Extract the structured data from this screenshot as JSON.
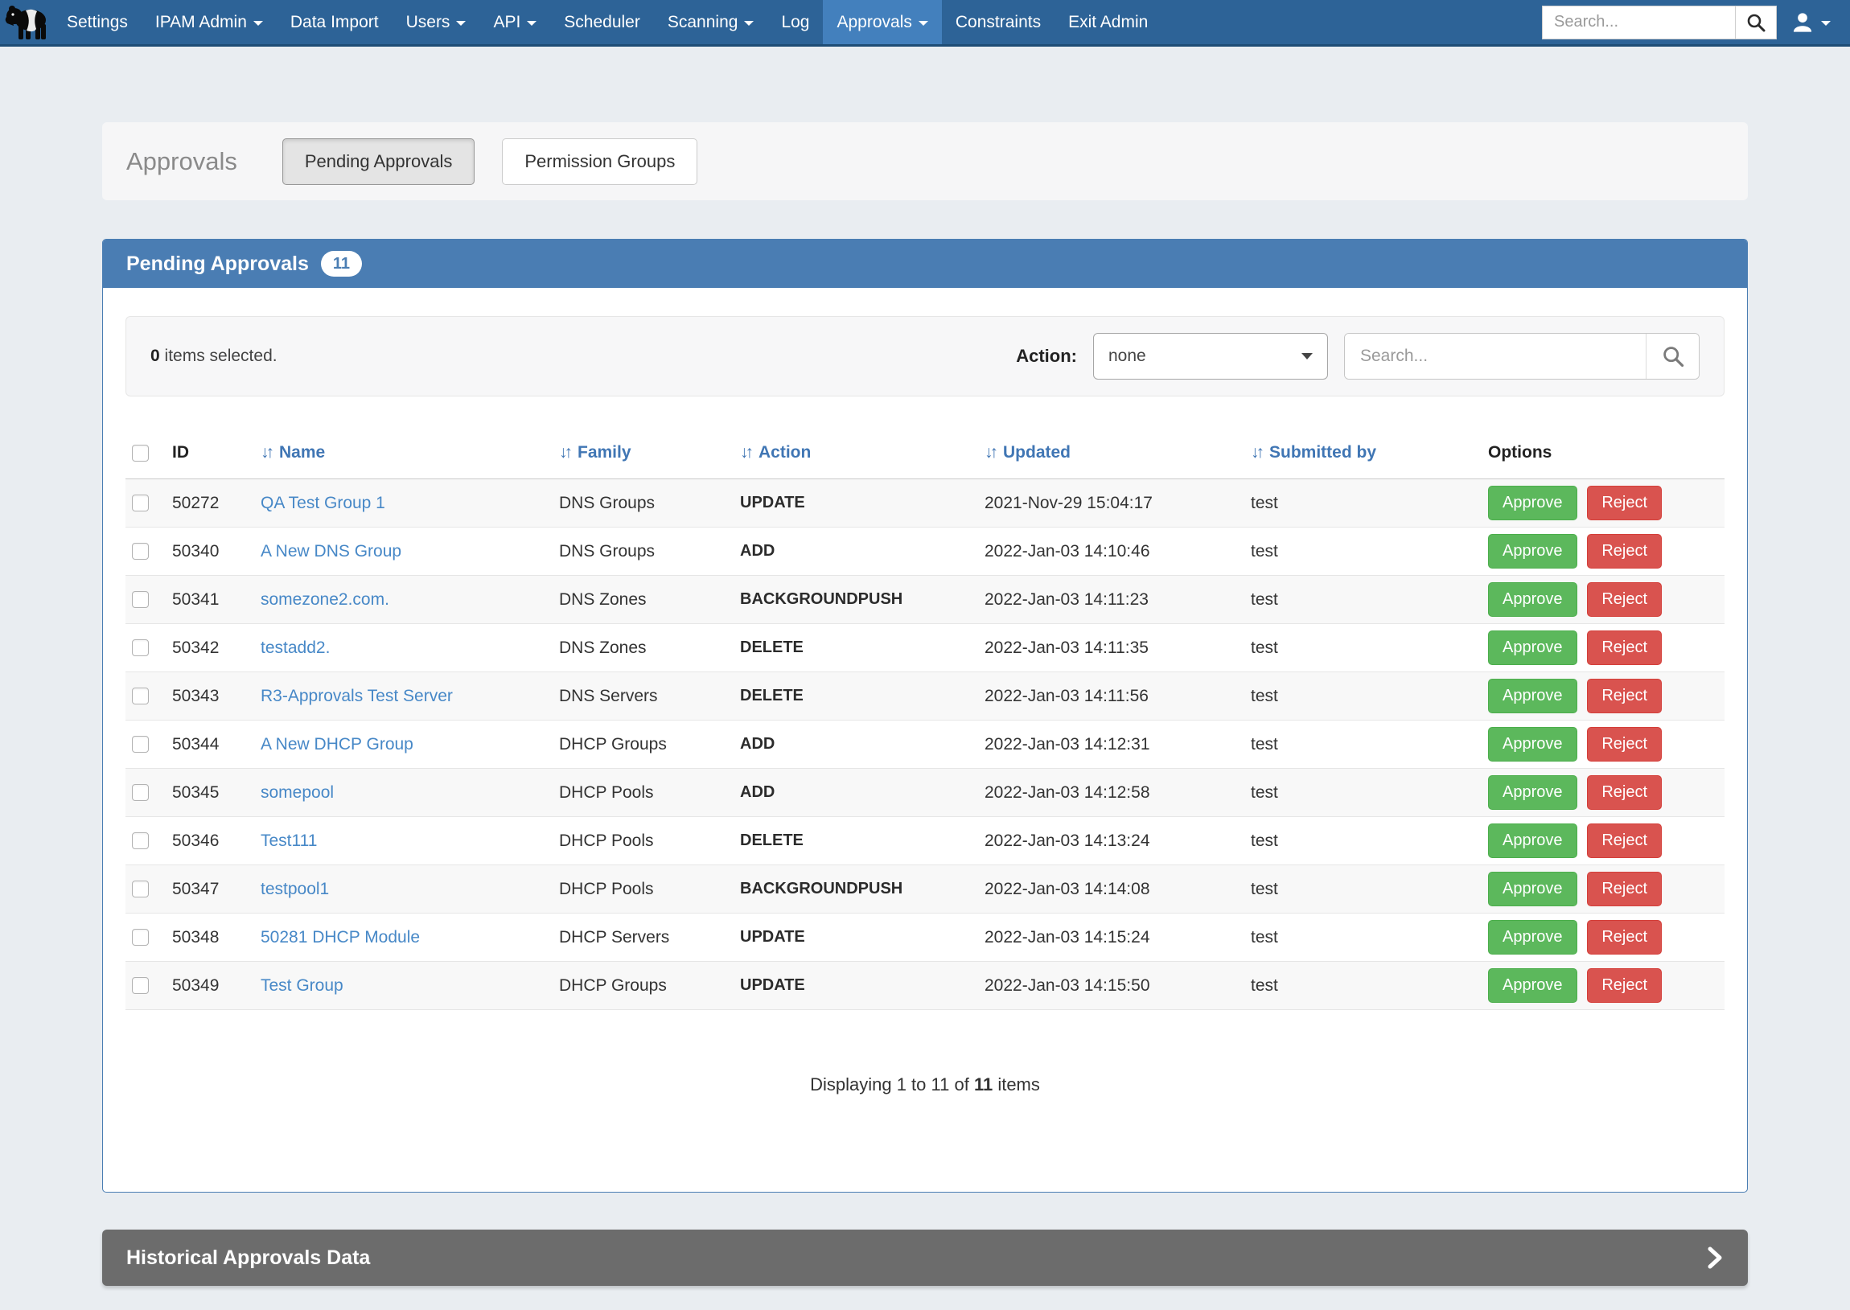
{
  "colors": {
    "nav_bg": "#2d6397",
    "nav_active_bg": "#4380bd",
    "panel_header_bg": "#4a7db3",
    "approve_green": "#5cb85c",
    "reject_red": "#d9534f",
    "link_blue": "#4788c7",
    "historical_gray": "#6c6c6c",
    "page_bg": "#e9edf1"
  },
  "navbar": {
    "logo_icon": "tapir-logo",
    "search_placeholder": "Search...",
    "items": [
      {
        "label": "Settings",
        "caret": false,
        "active": false
      },
      {
        "label": "IPAM Admin",
        "caret": true,
        "active": false
      },
      {
        "label": "Data Import",
        "caret": false,
        "active": false
      },
      {
        "label": "Users",
        "caret": true,
        "active": false
      },
      {
        "label": "API",
        "caret": true,
        "active": false
      },
      {
        "label": "Scheduler",
        "caret": false,
        "active": false
      },
      {
        "label": "Scanning",
        "caret": true,
        "active": false
      },
      {
        "label": "Log",
        "caret": false,
        "active": false
      },
      {
        "label": "Approvals",
        "caret": true,
        "active": true
      },
      {
        "label": "Constraints",
        "caret": false,
        "active": false
      },
      {
        "label": "Exit Admin",
        "caret": false,
        "active": false
      }
    ]
  },
  "page_header": {
    "title": "Approvals",
    "tabs": [
      {
        "label": "Pending Approvals",
        "active": true
      },
      {
        "label": "Permission Groups",
        "active": false
      }
    ]
  },
  "panel": {
    "title": "Pending Approvals",
    "badge": "11",
    "toolbar": {
      "selected_bold": "0",
      "selected_rest": " items selected.",
      "action_label": "Action:",
      "action_value": "none",
      "search_placeholder": "Search..."
    },
    "table": {
      "columns": [
        {
          "label": "ID",
          "sortable": false
        },
        {
          "label": "Name",
          "sortable": true
        },
        {
          "label": "Family",
          "sortable": true
        },
        {
          "label": "Action",
          "sortable": true
        },
        {
          "label": "Updated",
          "sortable": true
        },
        {
          "label": "Submitted by",
          "sortable": true
        },
        {
          "label": "Options",
          "sortable": false
        }
      ],
      "approve_label": "Approve",
      "reject_label": "Reject",
      "rows": [
        {
          "id": "50272",
          "name": "QA Test Group 1",
          "family": "DNS Groups",
          "action": "UPDATE",
          "updated": "2021-Nov-29 15:04:17",
          "submitted_by": "test"
        },
        {
          "id": "50340",
          "name": "A New DNS Group",
          "family": "DNS Groups",
          "action": "ADD",
          "updated": "2022-Jan-03 14:10:46",
          "submitted_by": "test"
        },
        {
          "id": "50341",
          "name": "somezone2.com.",
          "family": "DNS Zones",
          "action": "BACKGROUNDPUSH",
          "updated": "2022-Jan-03 14:11:23",
          "submitted_by": "test"
        },
        {
          "id": "50342",
          "name": "testadd2.",
          "family": "DNS Zones",
          "action": "DELETE",
          "updated": "2022-Jan-03 14:11:35",
          "submitted_by": "test"
        },
        {
          "id": "50343",
          "name": "R3-Approvals Test Server",
          "family": "DNS Servers",
          "action": "DELETE",
          "updated": "2022-Jan-03 14:11:56",
          "submitted_by": "test"
        },
        {
          "id": "50344",
          "name": "A New DHCP Group",
          "family": "DHCP Groups",
          "action": "ADD",
          "updated": "2022-Jan-03 14:12:31",
          "submitted_by": "test"
        },
        {
          "id": "50345",
          "name": "somepool",
          "family": "DHCP Pools",
          "action": "ADD",
          "updated": "2022-Jan-03 14:12:58",
          "submitted_by": "test"
        },
        {
          "id": "50346",
          "name": "Test111",
          "family": "DHCP Pools",
          "action": "DELETE",
          "updated": "2022-Jan-03 14:13:24",
          "submitted_by": "test"
        },
        {
          "id": "50347",
          "name": "testpool1",
          "family": "DHCP Pools",
          "action": "BACKGROUNDPUSH",
          "updated": "2022-Jan-03 14:14:08",
          "submitted_by": "test"
        },
        {
          "id": "50348",
          "name": "50281 DHCP Module",
          "family": "DHCP Servers",
          "action": "UPDATE",
          "updated": "2022-Jan-03 14:15:24",
          "submitted_by": "test"
        },
        {
          "id": "50349",
          "name": "Test Group",
          "family": "DHCP Groups",
          "action": "UPDATE",
          "updated": "2022-Jan-03 14:15:50",
          "submitted_by": "test"
        }
      ]
    },
    "footer": {
      "before": "Displaying 1 to 11 of ",
      "bold": "11",
      "after": " items"
    }
  },
  "historical_bar": {
    "title": "Historical Approvals Data"
  }
}
